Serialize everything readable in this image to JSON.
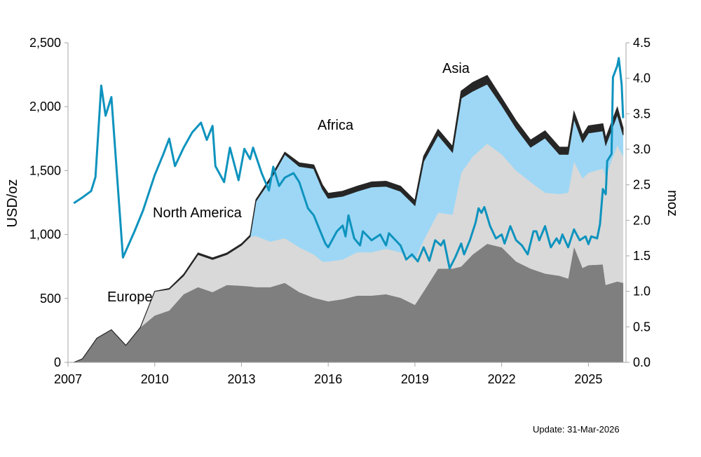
{
  "chart_data": {
    "type": "area",
    "subtype": "stacked area with line overlay",
    "title": "",
    "left_axis": {
      "label": "USD/oz",
      "range": [
        0,
        2500
      ],
      "ticks": [
        "0",
        "500",
        "1,000",
        "1,500",
        "2,000",
        "2,500"
      ],
      "tick_values": [
        0,
        500,
        1000,
        1500,
        2000,
        2500
      ]
    },
    "right_axis": {
      "label": "moz",
      "range": [
        0,
        4.5
      ],
      "ticks": [
        "0.0",
        "0.5",
        "1.0",
        "1.5",
        "2.0",
        "2.5",
        "3.0",
        "3.5",
        "4.0",
        "4.5"
      ],
      "tick_values": [
        0,
        0.5,
        1,
        1.5,
        2,
        2.5,
        3,
        3.5,
        4,
        4.5
      ]
    },
    "x_axis": {
      "range": [
        2007,
        2026.3
      ],
      "ticks": [
        "2007",
        "2010",
        "2013",
        "2016",
        "2019",
        "2022",
        "2025"
      ],
      "tick_values": [
        2007,
        2010,
        2013,
        2016,
        2019,
        2022,
        2025
      ]
    },
    "grid": false,
    "legend": "none (inline labels)",
    "x": [
      2007.2,
      2007.5,
      2008.0,
      2008.5,
      2009.0,
      2009.5,
      2010.0,
      2010.5,
      2011.0,
      2011.5,
      2012.0,
      2012.5,
      2013.0,
      2013.3,
      2013.5,
      2014.0,
      2014.5,
      2015.0,
      2015.5,
      2015.8,
      2016.0,
      2016.5,
      2017.0,
      2017.5,
      2018.0,
      2018.5,
      2019.0,
      2019.3,
      2019.8,
      2020.3,
      2020.6,
      2021.0,
      2021.5,
      2022.0,
      2022.5,
      2023.0,
      2023.5,
      2024.0,
      2024.3,
      2024.5,
      2024.8,
      2025.0,
      2025.5,
      2025.6,
      2026.0,
      2026.2
    ],
    "series": [
      {
        "name": "Europe",
        "axis": "right",
        "color": "#7f7f7f",
        "values": [
          0,
          0.05,
          0.34,
          0.46,
          0.24,
          0.49,
          0.66,
          0.73,
          0.96,
          1.06,
          0.99,
          1.09,
          1.08,
          1.07,
          1.06,
          1.06,
          1.12,
          0.99,
          0.91,
          0.88,
          0.86,
          0.89,
          0.94,
          0.94,
          0.96,
          0.91,
          0.81,
          1.0,
          1.32,
          1.32,
          1.35,
          1.52,
          1.67,
          1.62,
          1.42,
          1.32,
          1.25,
          1.22,
          1.18,
          1.63,
          1.33,
          1.37,
          1.38,
          1.09,
          1.14,
          1.12
        ]
      },
      {
        "name": "North America",
        "axis": "right",
        "color": "#d9d9d9",
        "values": [
          0,
          0,
          0,
          0,
          0,
          0,
          0.34,
          0.3,
          0.26,
          0.46,
          0.46,
          0.43,
          0.57,
          0.7,
          0.72,
          0.64,
          0.63,
          0.63,
          0.61,
          0.54,
          0.56,
          0.56,
          0.61,
          0.61,
          0.64,
          0.64,
          0.64,
          0.72,
          0.79,
          0.76,
          1.32,
          1.38,
          1.41,
          1.31,
          1.28,
          1.22,
          1.14,
          1.15,
          1.21,
          1.2,
          1.26,
          1.3,
          1.35,
          1.53,
          1.92,
          1.78
        ]
      },
      {
        "name": "Africa",
        "axis": "right",
        "color": "#9dd7f5",
        "values": [
          0,
          0,
          0,
          0,
          0,
          0,
          0,
          0,
          0,
          0,
          0,
          0,
          0,
          0,
          0.49,
          0.87,
          1.18,
          1.14,
          1.21,
          1.02,
          0.89,
          0.89,
          0.86,
          0.92,
          0.88,
          0.86,
          0.76,
          1.11,
          1.09,
          0.88,
          1.05,
          0.92,
          0.84,
          0.69,
          0.6,
          0.49,
          0.77,
          0.56,
          0.54,
          0.6,
          0.51,
          0.56,
          0.53,
          0.44,
          0.43,
          0.3
        ]
      },
      {
        "name": "Asia",
        "axis": "right",
        "color": "#262626",
        "values": [
          0,
          0,
          0,
          0,
          0,
          0,
          0,
          0.01,
          0.02,
          0.02,
          0.02,
          0.02,
          0.02,
          0.02,
          0.02,
          0.03,
          0.03,
          0.05,
          0.05,
          0.06,
          0.07,
          0.07,
          0.07,
          0.07,
          0.07,
          0.07,
          0.07,
          0.07,
          0.08,
          0.08,
          0.1,
          0.12,
          0.12,
          0.1,
          0.1,
          0.1,
          0.1,
          0.1,
          0.1,
          0.1,
          0.1,
          0.1,
          0.1,
          0.1,
          0.1,
          0.1
        ]
      }
    ],
    "price_line": {
      "axis": "left",
      "color": "#0e93be",
      "x": [
        2007.2,
        2007.5,
        2007.8,
        2007.95,
        2008.15,
        2008.3,
        2008.5,
        2008.9,
        2009.3,
        2009.6,
        2010.0,
        2010.3,
        2010.5,
        2010.7,
        2011.0,
        2011.3,
        2011.6,
        2011.8,
        2012.0,
        2012.1,
        2012.4,
        2012.6,
        2012.9,
        2013.1,
        2013.3,
        2013.4,
        2013.7,
        2013.95,
        2014.1,
        2014.3,
        2014.5,
        2014.8,
        2015.0,
        2015.3,
        2015.5,
        2015.7,
        2015.9,
        2016.0,
        2016.3,
        2016.5,
        2016.6,
        2016.7,
        2016.9,
        2017.1,
        2017.2,
        2017.5,
        2017.8,
        2018.0,
        2018.1,
        2018.5,
        2018.7,
        2018.9,
        2019.1,
        2019.3,
        2019.5,
        2019.7,
        2019.9,
        2020.0,
        2020.2,
        2020.4,
        2020.6,
        2020.7,
        2020.9,
        2021.1,
        2021.2,
        2021.3,
        2021.4,
        2021.6,
        2021.8,
        2022.0,
        2022.1,
        2022.3,
        2022.5,
        2022.7,
        2022.9,
        2023.1,
        2023.2,
        2023.3,
        2023.5,
        2023.7,
        2023.9,
        2024.0,
        2024.1,
        2024.3,
        2024.5,
        2024.7,
        2024.9,
        2025.0,
        2025.1,
        2025.3,
        2025.4,
        2025.5,
        2025.6,
        2025.65,
        2025.8,
        2025.85,
        2026.0,
        2026.05,
        2026.15,
        2026.2
      ],
      "values": [
        1245,
        1290,
        1340,
        1450,
        2165,
        1930,
        2075,
        820,
        1025,
        1190,
        1465,
        1630,
        1750,
        1535,
        1680,
        1800,
        1875,
        1740,
        1850,
        1535,
        1410,
        1680,
        1425,
        1670,
        1590,
        1680,
        1480,
        1345,
        1530,
        1380,
        1445,
        1480,
        1410,
        1205,
        1150,
        1040,
        930,
        900,
        1025,
        1070,
        985,
        1150,
        970,
        915,
        1025,
        955,
        1000,
        915,
        1010,
        915,
        805,
        845,
        790,
        900,
        795,
        955,
        915,
        955,
        735,
        825,
        930,
        845,
        955,
        1095,
        1205,
        1170,
        1215,
        1065,
        970,
        1000,
        930,
        1065,
        955,
        915,
        845,
        1025,
        1025,
        955,
        1065,
        900,
        970,
        930,
        1000,
        900,
        1040,
        955,
        985,
        925,
        985,
        970,
        1080,
        1355,
        1315,
        1575,
        1630,
        2230,
        2320,
        2380,
        2175,
        1910
      ]
    },
    "annotations": [
      "Europe",
      "North America",
      "Africa",
      "Asia"
    ]
  },
  "labels": {
    "europe": "Europe",
    "north_america": "North America",
    "africa": "Africa",
    "asia": "Asia"
  },
  "footer": {
    "update": "Update: 31-Mar-2026"
  }
}
